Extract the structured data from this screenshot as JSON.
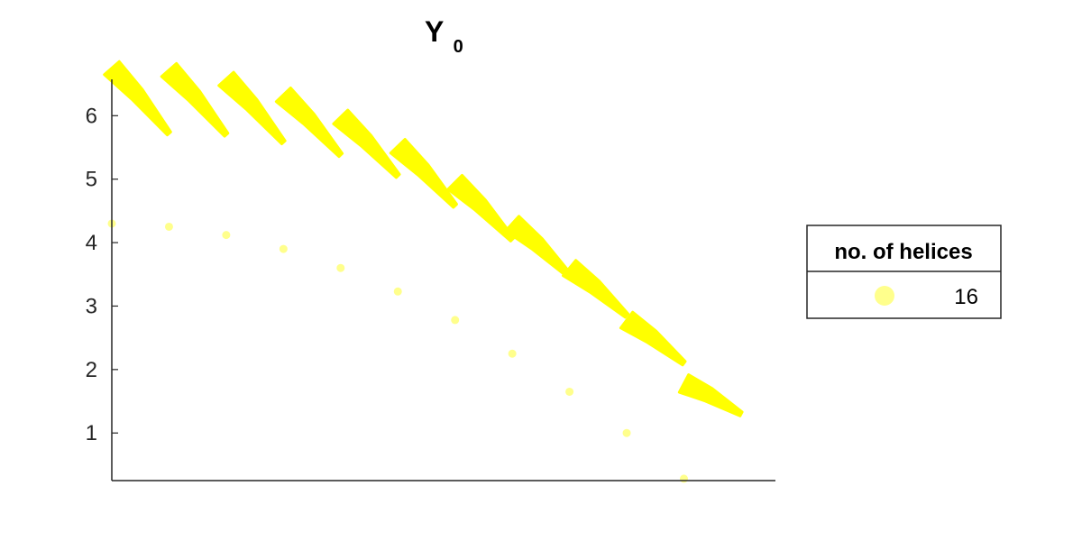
{
  "chart_data": {
    "type": "scatter",
    "title": "Y",
    "title_subscript": "0",
    "xlabel": "",
    "ylabel": "",
    "x_ticks_visible": false,
    "ylim": [
      0.25,
      6.8
    ],
    "xlim": [
      0.5,
      12.1
    ],
    "y_ticks": [
      "1",
      "2",
      "3",
      "4",
      "5",
      "6"
    ],
    "grid": false,
    "legend": {
      "title": "no. of helices",
      "placement": "right",
      "entries": [
        {
          "label": "16"
        }
      ]
    },
    "colors": {
      "marker": "#ffff00",
      "axis": "#262626"
    },
    "series": [
      {
        "kind": "points",
        "x": [
          0.5,
          1.5,
          2.5,
          3.5,
          4.5,
          5.5,
          6.5,
          7.5,
          8.5,
          9.5,
          10.5
        ],
        "y": [
          4.3,
          4.25,
          4.12,
          3.9,
          3.6,
          3.23,
          2.78,
          2.25,
          1.65,
          1.0,
          0.28
        ]
      },
      {
        "kind": "helices",
        "segments": [
          {
            "x0": 0.5,
            "y0": 6.75,
            "x1": 1.5,
            "y1": 5.72
          },
          {
            "x0": 1.5,
            "y0": 6.72,
            "x1": 2.5,
            "y1": 5.7
          },
          {
            "x0": 2.5,
            "y0": 6.58,
            "x1": 3.5,
            "y1": 5.58
          },
          {
            "x0": 3.5,
            "y0": 6.33,
            "x1": 4.5,
            "y1": 5.38
          },
          {
            "x0": 4.5,
            "y0": 5.98,
            "x1": 5.5,
            "y1": 5.05
          },
          {
            "x0": 5.5,
            "y0": 5.52,
            "x1": 6.5,
            "y1": 4.58
          },
          {
            "x0": 6.5,
            "y0": 4.95,
            "x1": 7.5,
            "y1": 4.05
          },
          {
            "x0": 7.5,
            "y0": 4.3,
            "x1": 8.5,
            "y1": 3.48
          },
          {
            "x0": 8.5,
            "y0": 3.6,
            "x1": 9.5,
            "y1": 2.85
          },
          {
            "x0": 9.5,
            "y0": 2.78,
            "x1": 10.5,
            "y1": 2.1
          },
          {
            "x0": 10.5,
            "y0": 1.78,
            "x1": 11.5,
            "y1": 1.3
          }
        ]
      }
    ]
  }
}
